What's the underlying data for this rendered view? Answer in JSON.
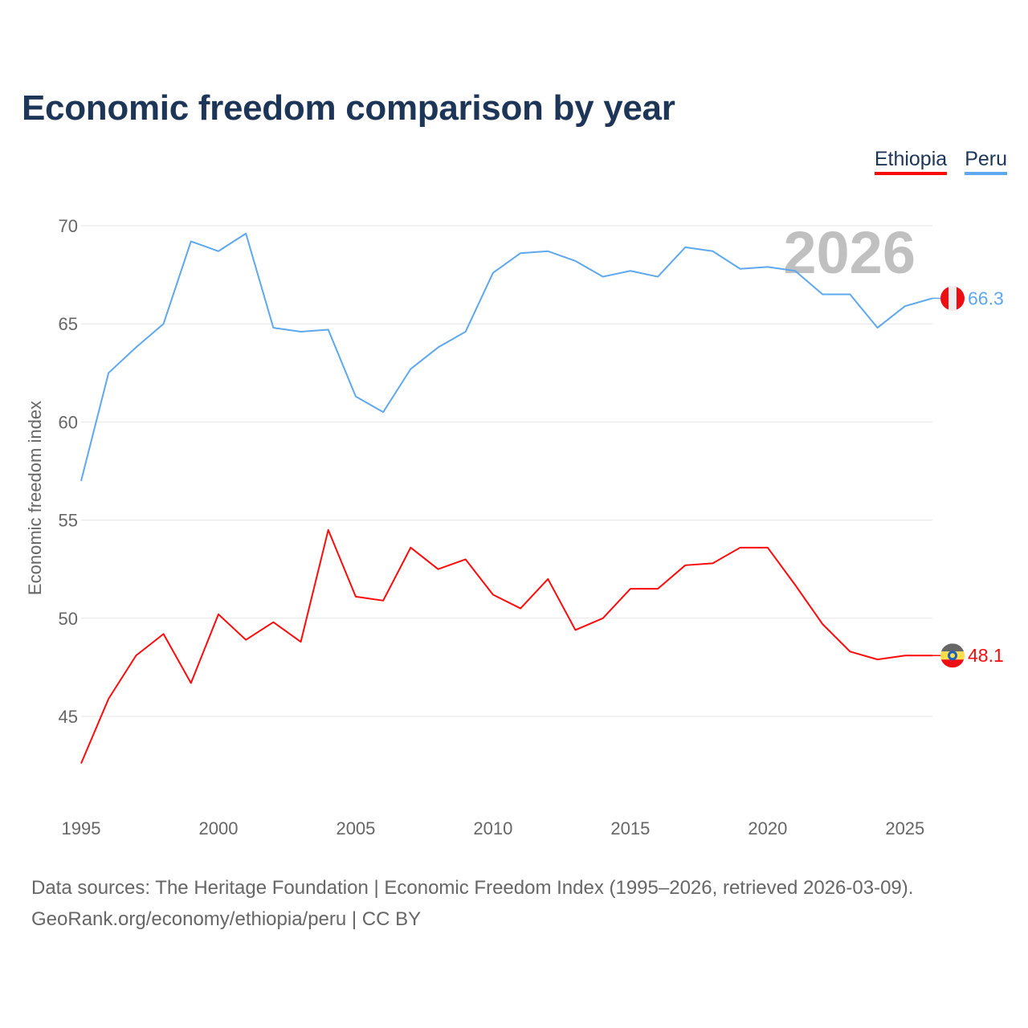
{
  "title": "Economic freedom comparison by year",
  "legend": [
    {
      "name": "Ethiopia",
      "color": "#ff0a0a"
    },
    {
      "name": "Peru",
      "color": "#5da8ee"
    }
  ],
  "footer": {
    "line1": "Data sources: The Heritage Foundation | Economic Freedom Index (1995–2026, retrieved 2026-03-09).",
    "line2": "GeoRank.org/economy/ethiopia/peru | CC BY"
  },
  "chart_data": {
    "type": "line",
    "title": "Economic freedom comparison by year",
    "xlabel": "",
    "ylabel": "Economic freedom index",
    "year_watermark": "2026",
    "xlim": [
      1995,
      2026
    ],
    "ylim": [
      40,
      72
    ],
    "x_ticks": [
      1995,
      2000,
      2005,
      2010,
      2015,
      2020,
      2025
    ],
    "y_ticks": [
      45,
      50,
      55,
      60,
      65,
      70
    ],
    "grid": true,
    "legend_position": "top-right",
    "x": [
      1995,
      1996,
      1997,
      1998,
      1999,
      2000,
      2001,
      2002,
      2003,
      2004,
      2005,
      2006,
      2007,
      2008,
      2009,
      2010,
      2011,
      2012,
      2013,
      2014,
      2015,
      2016,
      2017,
      2018,
      2019,
      2020,
      2021,
      2022,
      2023,
      2024,
      2025,
      2026
    ],
    "series": [
      {
        "name": "Ethiopia",
        "color": "#ff0a0a",
        "end_label": "48.1",
        "values": [
          42.6,
          45.9,
          48.1,
          49.2,
          46.7,
          50.2,
          48.9,
          49.8,
          48.8,
          54.5,
          51.1,
          50.9,
          53.6,
          52.5,
          53.0,
          51.2,
          50.5,
          52.0,
          49.4,
          50.0,
          51.5,
          51.5,
          52.7,
          52.8,
          53.6,
          53.6,
          51.7,
          49.7,
          48.3,
          47.9,
          48.1,
          48.1
        ]
      },
      {
        "name": "Peru",
        "color": "#5da8ee",
        "end_label": "66.3",
        "values": [
          57.0,
          62.5,
          63.8,
          65.0,
          69.2,
          68.7,
          69.6,
          64.8,
          64.6,
          64.7,
          61.3,
          60.5,
          62.7,
          63.8,
          64.6,
          67.6,
          68.6,
          68.7,
          68.2,
          67.4,
          67.7,
          67.4,
          68.9,
          68.7,
          67.8,
          67.9,
          67.7,
          66.5,
          66.5,
          64.8,
          65.9,
          66.3
        ]
      }
    ]
  }
}
